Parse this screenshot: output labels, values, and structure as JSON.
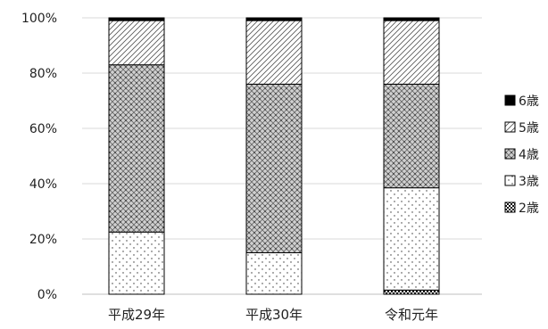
{
  "chart_data": {
    "type": "bar",
    "stacked": true,
    "percent": true,
    "categories": [
      "平成29年",
      "平成30年",
      "令和元年"
    ],
    "ylim": [
      0,
      100
    ],
    "yticks": [
      "0%",
      "20%",
      "40%",
      "60%",
      "80%",
      "100%"
    ],
    "grid": "horizontal",
    "legend_position": "right",
    "series": [
      {
        "name": "2歳",
        "values": [
          0,
          0,
          1.5
        ]
      },
      {
        "name": "3歳",
        "values": [
          22.5,
          15,
          37
        ]
      },
      {
        "name": "4歳",
        "values": [
          60.5,
          61,
          37.5
        ]
      },
      {
        "name": "5歳",
        "values": [
          16,
          23,
          23
        ]
      },
      {
        "name": "6歳",
        "values": [
          1,
          1,
          1
        ]
      }
    ],
    "legend_order": [
      "6歳",
      "5歳",
      "4歳",
      "3歳",
      "2歳"
    ]
  }
}
